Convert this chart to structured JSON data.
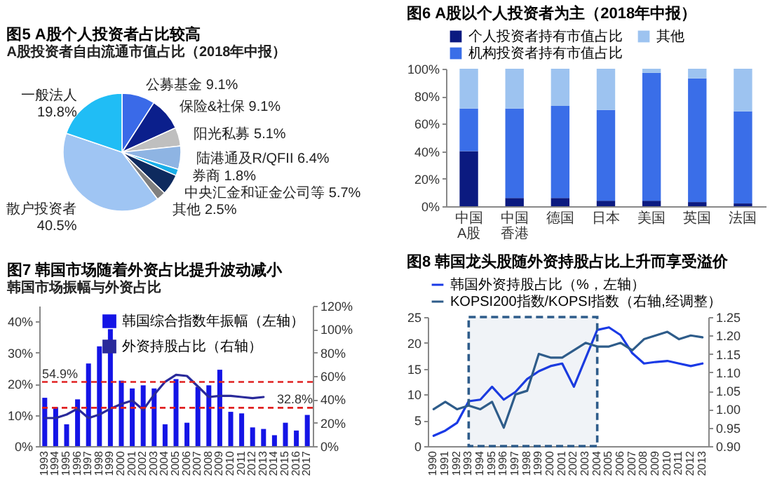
{
  "chart_data": [
    {
      "type": "pie",
      "title": "图5  A股个人投资者占比较高",
      "subtitle": "A股投资者自由流通市值占比（2018年中报）",
      "categories": [
        "公募基金",
        "保险&社保",
        "阳光私募",
        "陆港通及R/QFII",
        "券商",
        "中央汇金和证金公司等",
        "其他",
        "散户投资者",
        "一般法人"
      ],
      "values": [
        9.1,
        9.1,
        5.1,
        6.4,
        1.8,
        5.7,
        2.5,
        40.5,
        19.8
      ],
      "value_labels": [
        "9.1%",
        "9.1%",
        "5.1%",
        "6.4%",
        "1.8%",
        "5.7%",
        "2.5%",
        "40.5%",
        "19.8%"
      ],
      "colors": [
        "#3a6ae8",
        "#0b1f8c",
        "#bfbfbf",
        "#8eb4e3",
        "#19aee8",
        "#0e2a5e",
        "#7f7f7f",
        "#9fc5f3",
        "#20bdf5"
      ]
    },
    {
      "type": "bar",
      "stacked": true,
      "title": "图6  A股以个人投资者为主（2018年中报）",
      "categories": [
        "中国A股",
        "中国香港",
        "德国",
        "日本",
        "美国",
        "英国",
        "法国"
      ],
      "series": [
        {
          "name": "个人投资者持有市值占比",
          "color": "#0b1a80",
          "values": [
            40,
            6,
            6,
            4,
            4,
            3,
            2
          ]
        },
        {
          "name": "机构投资者持有市值占比",
          "color": "#3a6ee8",
          "values": [
            31,
            65,
            67,
            66,
            93,
            90,
            67
          ]
        },
        {
          "name": "其他",
          "color": "#9dc3f0",
          "values": [
            29,
            29,
            27,
            30,
            3,
            7,
            31
          ]
        }
      ],
      "ylim": [
        0,
        100
      ],
      "yticks": [
        {
          "value": 0,
          "label": "0%"
        },
        {
          "value": 20,
          "label": "20%"
        },
        {
          "value": 40,
          "label": "40%"
        },
        {
          "value": 60,
          "label": "60%"
        },
        {
          "value": 80,
          "label": "80%"
        },
        {
          "value": 100,
          "label": "100%"
        }
      ],
      "legend": "top"
    },
    {
      "type": "bar",
      "title": "图7  韩国市场随着外资占比提升波动减小",
      "subtitle": "韩国市场振幅与外资占比",
      "categories": [
        "1993",
        "1994",
        "1995",
        "1996",
        "1997",
        "1998",
        "1999",
        "2000",
        "2001",
        "2002",
        "2003",
        "2004",
        "2005",
        "2006",
        "2007",
        "2008",
        "2009",
        "2010",
        "2011",
        "2012",
        "2013",
        "2014",
        "2015",
        "2016",
        "2017"
      ],
      "series": [
        {
          "name": "韩国综合指数年振幅（左轴）",
          "type": "bar",
          "color": "#1414e6",
          "values": [
            15.5,
            12.5,
            7,
            15,
            26.5,
            32,
            37.5,
            21,
            18.5,
            19.5,
            18.5,
            7,
            21.5,
            7.5,
            19,
            19.5,
            24.5,
            11,
            10.5,
            6,
            5.5,
            3.5,
            7.5,
            5,
            10
          ]
        },
        {
          "name": "外资持股占比（右轴）",
          "type": "line",
          "axis": "y2",
          "color": "#2a2a9a",
          "values": [
            24,
            24,
            27,
            32,
            24,
            27,
            32,
            36,
            39,
            31,
            44,
            55,
            61,
            60,
            51,
            42,
            43,
            43,
            42,
            41,
            42,
            null,
            null,
            null,
            null
          ]
        }
      ],
      "ylim": [
        0,
        45
      ],
      "yticks": [
        {
          "value": 0,
          "label": "0%"
        },
        {
          "value": 10,
          "label": "10%"
        },
        {
          "value": 20,
          "label": "20%"
        },
        {
          "value": 30,
          "label": "30%"
        },
        {
          "value": 40,
          "label": "40%"
        }
      ],
      "y2lim": [
        0,
        120
      ],
      "y2ticks": [
        {
          "value": 0,
          "label": "0%"
        },
        {
          "value": 20,
          "label": "20%"
        },
        {
          "value": 40,
          "label": "40%"
        },
        {
          "value": 60,
          "label": "60%"
        },
        {
          "value": 80,
          "label": "80%"
        },
        {
          "value": 100,
          "label": "100%"
        },
        {
          "value": 120,
          "label": "120%"
        }
      ],
      "ref_lines": [
        {
          "axis": "y2",
          "value": 54.9,
          "label": "54.9%",
          "color": "#e02020",
          "line_style": "dashed"
        },
        {
          "axis": "y2",
          "value": 32.8,
          "label": "32.8%",
          "color": "#e02020",
          "line_style": "dashed"
        }
      ],
      "legend": "top right"
    },
    {
      "type": "line",
      "title": "图8  韩国龙头股随外资持股占比上升而享受溢价",
      "categories": [
        "1990",
        "1991",
        "1992",
        "1993",
        "1994",
        "1995",
        "1996",
        "1997",
        "1998",
        "1999",
        "2000",
        "2001",
        "2002",
        "2003",
        "2004",
        "2005",
        "2006",
        "2007",
        "2008",
        "2009",
        "2010",
        "2011",
        "2012",
        "2013"
      ],
      "series": [
        {
          "name": "韩国外资持股占比（%，左轴）",
          "color": "#1a3ae6",
          "values": [
            2,
            3,
            4.5,
            8.7,
            9,
            11.5,
            9,
            10.5,
            13,
            14.5,
            15.5,
            16,
            11.5,
            17,
            22.5,
            23,
            21.5,
            18,
            16,
            16.3,
            16.5,
            16,
            15.5,
            16
          ]
        },
        {
          "name": "KOPSI200指数/KOPSI指数（右轴,经调整）",
          "axis": "y2",
          "color": "#2e5c8a",
          "values": [
            1.0,
            1.02,
            1.0,
            1.01,
            1.0,
            1.02,
            0.95,
            1.04,
            1.05,
            1.15,
            1.14,
            1.14,
            1.16,
            1.18,
            1.17,
            1.17,
            1.18,
            1.16,
            1.19,
            1.2,
            1.21,
            1.19,
            1.2,
            1.195
          ]
        }
      ],
      "ylim": [
        0,
        25
      ],
      "yticks": [
        0,
        5,
        10,
        15,
        20,
        25
      ],
      "y2lim": [
        0.9,
        1.25
      ],
      "y2ticks": [
        {
          "value": 0.9,
          "label": "0.90"
        },
        {
          "value": 0.95,
          "label": "0.95"
        },
        {
          "value": 1.0,
          "label": "1.00"
        },
        {
          "value": 1.05,
          "label": "1.05"
        },
        {
          "value": 1.1,
          "label": "1.10"
        },
        {
          "value": 1.15,
          "label": "1.15"
        },
        {
          "value": 1.2,
          "label": "1.20"
        },
        {
          "value": 1.25,
          "label": "1.25"
        }
      ],
      "bands": [
        {
          "axis": "x",
          "from": "1993",
          "to": "2004",
          "color": "#2e5c8a"
        }
      ],
      "legend": "top"
    }
  ]
}
